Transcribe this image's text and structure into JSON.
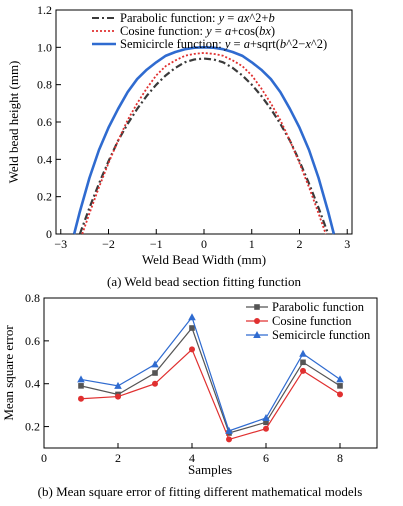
{
  "chart_data": [
    {
      "type": "line",
      "caption": "(a) Weld bead section fitting function",
      "xlabel": "Weld Bead Width (mm)",
      "ylabel": "Weld bead height (mm)",
      "xlim": [
        -3.1,
        3.1
      ],
      "ylim": [
        0,
        1.2
      ],
      "xticks": [
        "−3",
        "−2",
        "−1",
        "0",
        "1",
        "2",
        "3"
      ],
      "yticks": [
        "0",
        "0.2",
        "0.4",
        "0.6",
        "0.8",
        "1.0",
        "1.2"
      ],
      "legend_position": "top-left",
      "series": [
        {
          "name": "Parabolic function: y = ax^2+b",
          "color": "#3a3a3a",
          "style": "dash-dot",
          "x": [
            -2.6,
            -2.4,
            -2.2,
            -2.0,
            -1.8,
            -1.6,
            -1.4,
            -1.2,
            -1.0,
            -0.8,
            -0.6,
            -0.4,
            -0.2,
            0,
            0.2,
            0.4,
            0.6,
            0.8,
            1.0,
            1.2,
            1.4,
            1.6,
            1.8,
            2.0,
            2.2,
            2.4,
            2.6
          ],
          "y": [
            0.0,
            0.14,
            0.27,
            0.39,
            0.5,
            0.59,
            0.67,
            0.74,
            0.8,
            0.85,
            0.89,
            0.92,
            0.935,
            0.94,
            0.935,
            0.92,
            0.89,
            0.85,
            0.8,
            0.74,
            0.67,
            0.59,
            0.5,
            0.39,
            0.27,
            0.14,
            0.0
          ]
        },
        {
          "name": "Cosine function: y = a+cos(bx)",
          "color": "#e03030",
          "style": "dotted",
          "x": [
            -2.55,
            -2.4,
            -2.2,
            -2.0,
            -1.8,
            -1.6,
            -1.4,
            -1.2,
            -1.0,
            -0.8,
            -0.6,
            -0.4,
            -0.2,
            0,
            0.2,
            0.4,
            0.6,
            0.8,
            1.0,
            1.2,
            1.4,
            1.6,
            1.8,
            2.0,
            2.2,
            2.4,
            2.55
          ],
          "y": [
            0.0,
            0.11,
            0.25,
            0.38,
            0.5,
            0.61,
            0.7,
            0.78,
            0.85,
            0.9,
            0.93,
            0.955,
            0.965,
            0.97,
            0.965,
            0.955,
            0.93,
            0.9,
            0.85,
            0.78,
            0.7,
            0.61,
            0.5,
            0.38,
            0.25,
            0.11,
            0.0
          ]
        },
        {
          "name": "Semicircle function: y = a+sqrt(b^2−x^2)",
          "color": "#2f6bd0",
          "style": "solid",
          "x": [
            -2.72,
            -2.6,
            -2.4,
            -2.2,
            -2.0,
            -1.8,
            -1.6,
            -1.4,
            -1.2,
            -1.0,
            -0.8,
            -0.6,
            -0.4,
            -0.2,
            0,
            0.2,
            0.4,
            0.6,
            0.8,
            1.0,
            1.2,
            1.4,
            1.6,
            1.8,
            2.0,
            2.2,
            2.4,
            2.6,
            2.72
          ],
          "y": [
            0.0,
            0.12,
            0.3,
            0.45,
            0.57,
            0.67,
            0.76,
            0.83,
            0.88,
            0.92,
            0.955,
            0.975,
            0.99,
            0.998,
            1.0,
            0.998,
            0.99,
            0.975,
            0.955,
            0.92,
            0.88,
            0.83,
            0.76,
            0.67,
            0.57,
            0.45,
            0.3,
            0.12,
            0.0
          ]
        }
      ]
    },
    {
      "type": "line",
      "caption": "(b) Mean square error of fitting different mathematical models",
      "xlabel": "Samples",
      "ylabel": "Mean square error",
      "xlim": [
        0,
        9
      ],
      "ylim": [
        0.1,
        0.8
      ],
      "xticks": [
        "0",
        "2",
        "4",
        "6",
        "8"
      ],
      "yticks": [
        "0.2",
        "0.4",
        "0.6",
        "0.8"
      ],
      "legend_position": "top-right",
      "series": [
        {
          "name": "Parabolic function",
          "color": "#555555",
          "marker": "square",
          "x": [
            1,
            2,
            3,
            4,
            5,
            6,
            7,
            8
          ],
          "y": [
            0.39,
            0.35,
            0.45,
            0.66,
            0.17,
            0.22,
            0.5,
            0.39
          ]
        },
        {
          "name": "Cosine function",
          "color": "#e03030",
          "marker": "circle",
          "x": [
            1,
            2,
            3,
            4,
            5,
            6,
            7,
            8
          ],
          "y": [
            0.33,
            0.34,
            0.4,
            0.56,
            0.14,
            0.19,
            0.46,
            0.35
          ]
        },
        {
          "name": "Semicircle function",
          "color": "#2f6bd0",
          "marker": "triangle",
          "x": [
            1,
            2,
            3,
            4,
            5,
            6,
            7,
            8
          ],
          "y": [
            0.42,
            0.39,
            0.49,
            0.71,
            0.18,
            0.24,
            0.54,
            0.42
          ]
        }
      ]
    }
  ]
}
